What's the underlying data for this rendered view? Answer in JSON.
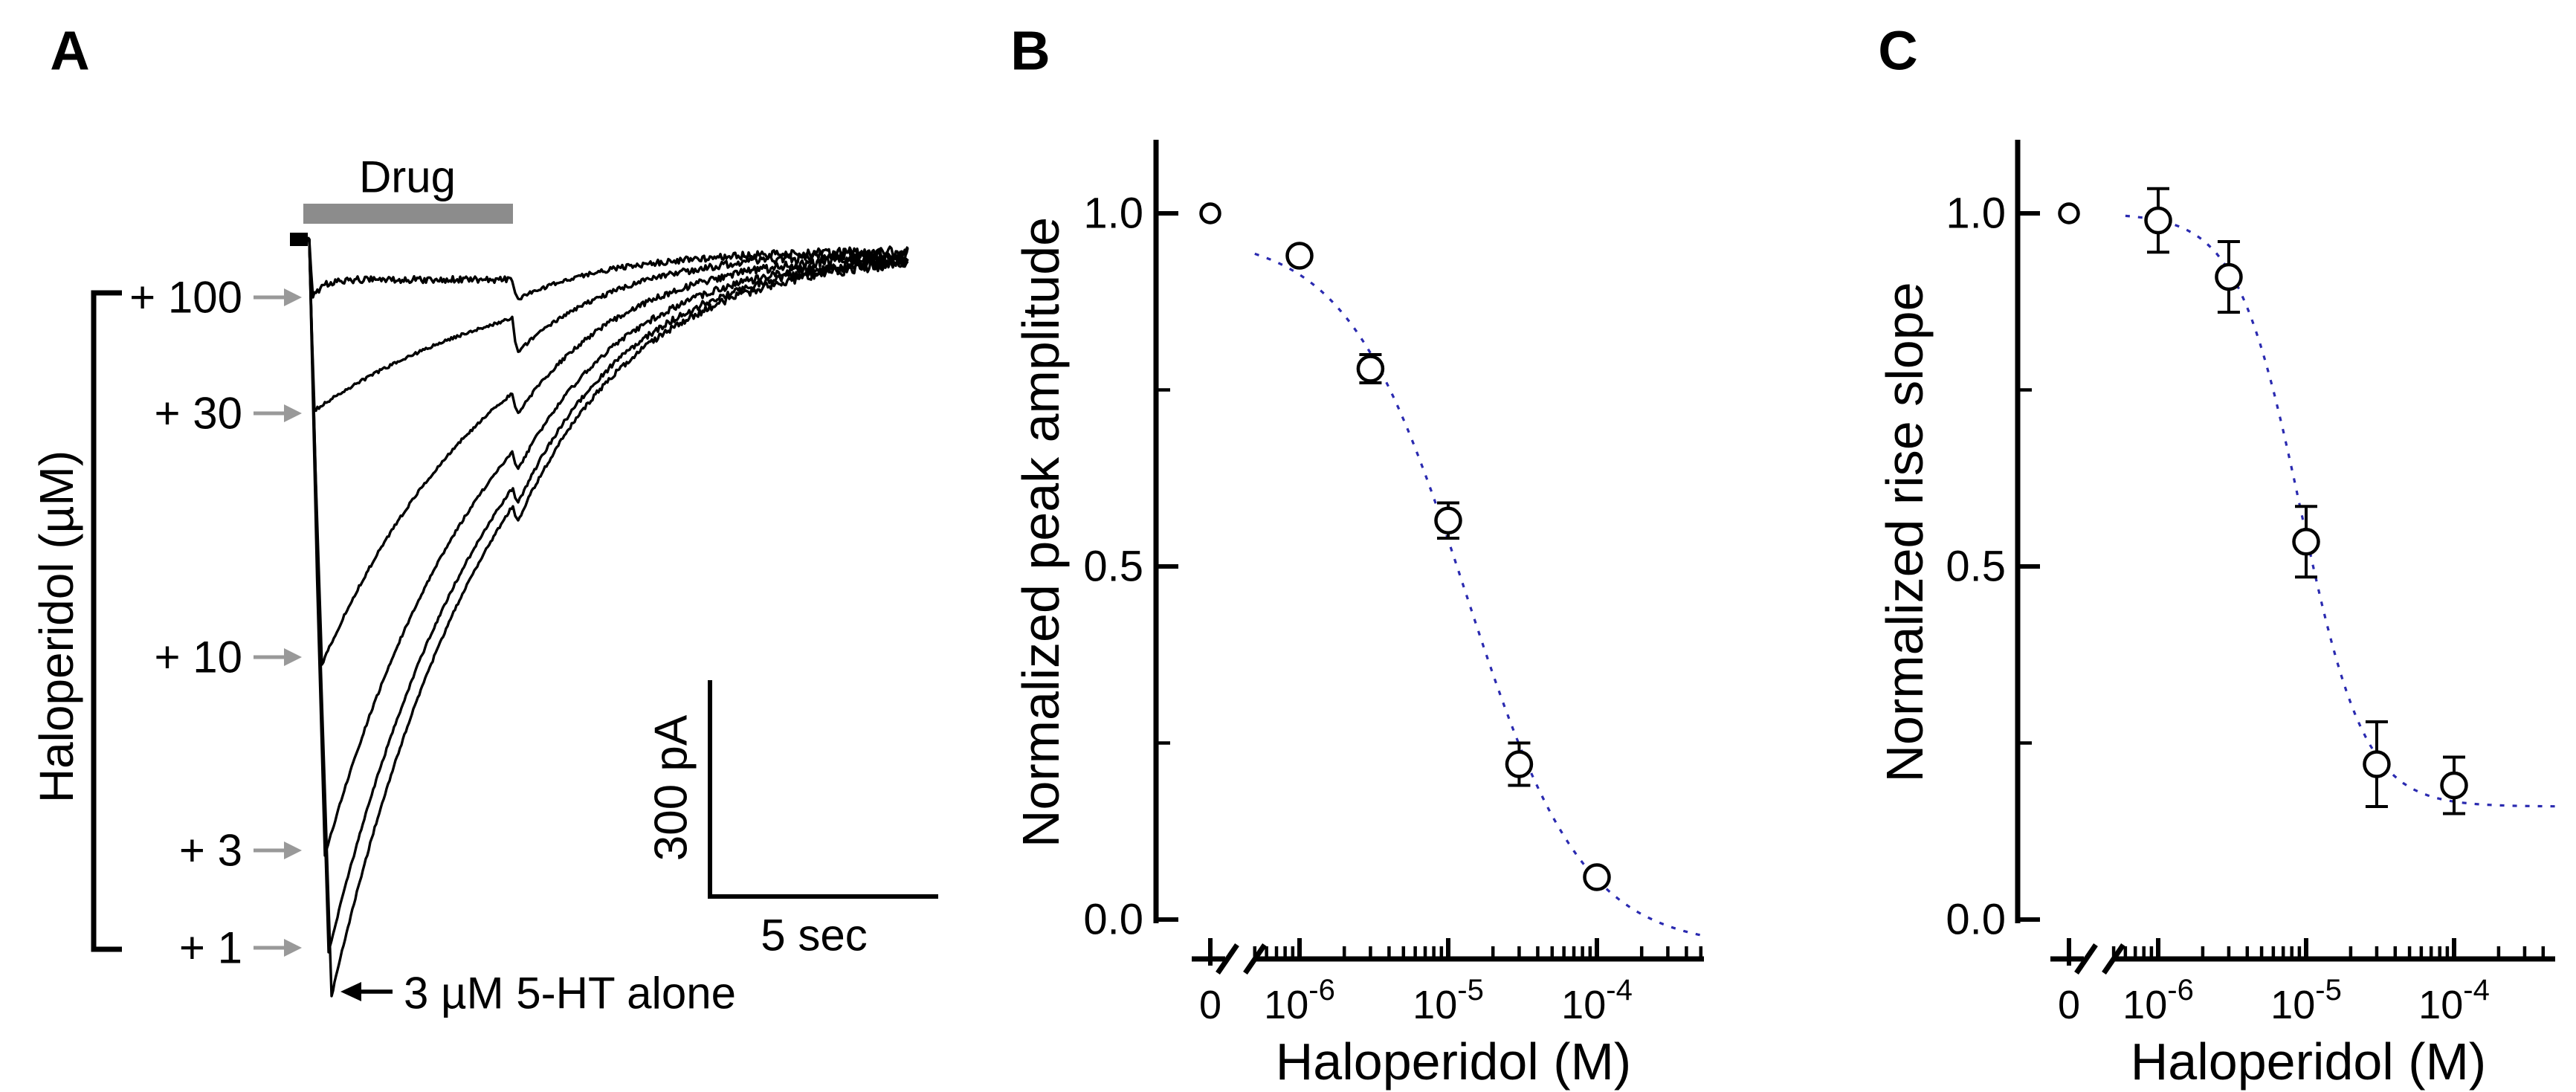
{
  "panel_a": {
    "label": "A",
    "drug_bar_label": "Drug",
    "bracket_axis_label": "Haloperidol (µM)",
    "trace_labels": [
      "+ 100",
      "+ 30",
      "+ 10",
      "+ 3",
      "+ 1"
    ],
    "annotation": "3 µM 5-HT alone",
    "scale_bar_vertical": "300 pA",
    "scale_bar_horizontal": "5 sec",
    "colors": {
      "trace": "#000000",
      "drug_bar": "#8c8c8c",
      "arrow": "#999999",
      "annotation_arrow": "#000000"
    }
  },
  "panel_b": {
    "label": "B",
    "y_axis_title": "Normalized peak amplitude",
    "x_axis_title": "Haloperidol (M)"
  },
  "panel_c": {
    "label": "C",
    "y_axis_title": "Normalized rise slope",
    "x_axis_title": "Haloperidol (M)"
  },
  "chart_data": [
    {
      "id": "panel_a_traces",
      "type": "line",
      "title": "Whole-cell 5-HT currents with co-applied haloperidol",
      "drug_bar_label": "Drug",
      "scale_bar": {
        "y": "300 pA",
        "x": "5 sec"
      },
      "traces": [
        {
          "label": "+ 100",
          "haloperidol_uM": 100,
          "relative_peak": 0.08
        },
        {
          "label": "+ 30",
          "haloperidol_uM": 30,
          "relative_peak": 0.23
        },
        {
          "label": "+ 10",
          "haloperidol_uM": 10,
          "relative_peak": 0.56
        },
        {
          "label": "+ 3",
          "haloperidol_uM": 3,
          "relative_peak": 0.81
        },
        {
          "label": "+ 1",
          "haloperidol_uM": 1,
          "relative_peak": 0.94
        },
        {
          "label": "3 µM 5-HT alone",
          "haloperidol_uM": 0,
          "relative_peak": 1.0
        }
      ]
    },
    {
      "id": "panel_b",
      "type": "scatter",
      "xlabel": "Haloperidol (M)",
      "ylabel": "Normalized peak amplitude",
      "x_scale": "log (with zero + axis break)",
      "ylim": [
        0.0,
        1.0
      ],
      "y_ticks": [
        {
          "v": 1.0,
          "label": "1.0"
        },
        {
          "v": 0.5,
          "label": "0.5"
        },
        {
          "v": 0.0,
          "label": "0.0"
        }
      ],
      "y_minor_ticks": [
        0.75,
        0.25
      ],
      "x_ticks": [
        {
          "value": 0,
          "text": "0"
        },
        {
          "value": 1e-06,
          "base": "10",
          "exp": "-6"
        },
        {
          "value": 1e-05,
          "base": "10",
          "exp": "-5"
        },
        {
          "value": 0.0001,
          "base": "10",
          "exp": "-4"
        }
      ],
      "points": [
        {
          "x": 0,
          "y": 1.0,
          "sem": 0
        },
        {
          "x": 1e-06,
          "y": 0.94,
          "sem": 0
        },
        {
          "x": 3e-06,
          "y": 0.78,
          "sem": 0.02
        },
        {
          "x": 1e-05,
          "y": 0.565,
          "sem": 0.025
        },
        {
          "x": 3e-05,
          "y": 0.22,
          "sem": 0.03
        },
        {
          "x": 0.0001,
          "y": 0.06,
          "sem": 0
        }
      ],
      "fit": {
        "type": "hill",
        "top": 0.97,
        "bottom": -0.04,
        "ic50": 1.3e-05,
        "hill": 1.1,
        "range": [
          5e-07,
          0.00052
        ],
        "style": "dotted",
        "color": "#2a2ab0"
      }
    },
    {
      "id": "panel_c",
      "type": "scatter",
      "xlabel": "Haloperidol (M)",
      "ylabel": "Normalized rise slope",
      "x_scale": "log (with zero + axis break)",
      "ylim": [
        0.0,
        1.0
      ],
      "y_ticks": [
        {
          "v": 1.0,
          "label": "1.0"
        },
        {
          "v": 0.5,
          "label": "0.5"
        },
        {
          "v": 0.0,
          "label": "0.0"
        }
      ],
      "y_minor_ticks": [
        0.75,
        0.25
      ],
      "x_ticks": [
        {
          "value": 0,
          "text": "0"
        },
        {
          "value": 1e-06,
          "base": "10",
          "exp": "-6"
        },
        {
          "value": 1e-05,
          "base": "10",
          "exp": "-5"
        },
        {
          "value": 0.0001,
          "base": "10",
          "exp": "-4"
        }
      ],
      "points": [
        {
          "x": 0,
          "y": 1.0,
          "sem": 0
        },
        {
          "x": 1e-06,
          "y": 0.99,
          "sem": 0.045
        },
        {
          "x": 3e-06,
          "y": 0.91,
          "sem": 0.05
        },
        {
          "x": 1e-05,
          "y": 0.535,
          "sem": 0.05
        },
        {
          "x": 3e-05,
          "y": 0.22,
          "sem": 0.06
        },
        {
          "x": 0.0001,
          "y": 0.19,
          "sem": 0.04
        }
      ],
      "fit": {
        "type": "hill",
        "top": 1.0,
        "bottom": 0.16,
        "ic50": 9.2e-06,
        "hill": 2.0,
        "range": [
          6e-07,
          0.0005
        ],
        "style": "dotted",
        "color": "#2a2ab0"
      }
    }
  ]
}
